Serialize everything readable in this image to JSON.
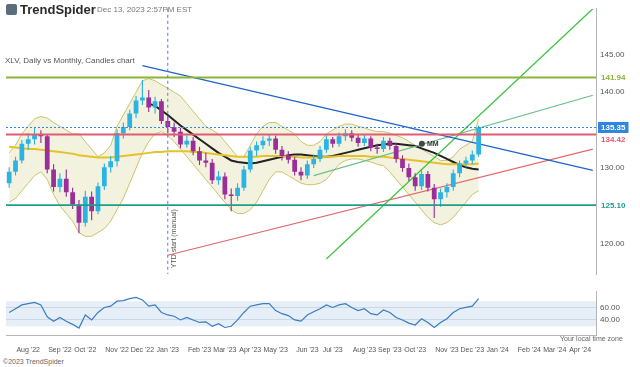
{
  "header": {
    "brand": "TrendSpider",
    "timestamp": "Dec 13, 2023 2:57PM EST"
  },
  "footer": {
    "copyright": "©2023 TrendSpider",
    "timezone_note": "Your local time zone"
  },
  "chart_data": [
    {
      "type": "candlestick",
      "title": "XLV, Daily vs Monthly, Candles chart",
      "categories": [
        null,
        null,
        null,
        "Aug '22",
        null,
        null,
        null,
        null,
        "Sep '22",
        null,
        null,
        null,
        "Oct '22",
        null,
        null,
        null,
        null,
        "Nov '22",
        null,
        null,
        null,
        "Dec '22",
        null,
        null,
        null,
        "Jan '23",
        null,
        null,
        null,
        null,
        "Feb '23",
        null,
        null,
        null,
        "Mar '23",
        null,
        null,
        null,
        "Apr '23",
        null,
        null,
        null,
        "May '23",
        null,
        null,
        null,
        null,
        "Jun '23",
        null,
        null,
        null,
        "Jul '23",
        null,
        null,
        null,
        null,
        "Aug '23",
        null,
        null,
        null,
        "Sep '23",
        null,
        null,
        null,
        "Oct '23",
        null,
        null,
        null,
        null,
        "Nov '23",
        null,
        null,
        null,
        "Dec '23",
        null,
        null,
        null,
        "Jan '24",
        null,
        null,
        null,
        null,
        "Feb '24",
        null,
        null,
        null,
        "Mar '24",
        null,
        null,
        null,
        "Apr '24",
        null,
        null
      ],
      "open": [
        128.0,
        129.5,
        131.0,
        133.2,
        133.8,
        134.5,
        134.2,
        129.8,
        127.5,
        128.6,
        126.8,
        125.2,
        122.8,
        126.2,
        124.3,
        127.6,
        130.1,
        130.9,
        134.6,
        135.4,
        137.2,
        138.9,
        139.3,
        138.0,
        138.8,
        136.2,
        135.4,
        134.8,
        133.1,
        133.6,
        132.2,
        131.0,
        130.7,
        128.4,
        128.9,
        126.5,
        126.3,
        127.4,
        129.8,
        132.3,
        133.0,
        133.6,
        133.9,
        132.4,
        131.6,
        131.1,
        129.5,
        129.0,
        130.5,
        131.2,
        132.4,
        133.8,
        133.2,
        134.2,
        134.6,
        134.0,
        133.3,
        133.9,
        132.7,
        132.5,
        133.6,
        132.9,
        131.2,
        130.0,
        128.8,
        127.6,
        129.2,
        127.4,
        125.9,
        126.8,
        127.5,
        129.3,
        130.6,
        131.0,
        131.8,
        null,
        null,
        null,
        null,
        null,
        null,
        null,
        null,
        null,
        null,
        null,
        null,
        null,
        null,
        null,
        null,
        null,
        null
      ],
      "high": [
        130.1,
        131.5,
        133.7,
        134.6,
        135.3,
        135.0,
        134.4,
        130.5,
        129.3,
        129.8,
        127.4,
        125.8,
        127.0,
        126.9,
        128.1,
        130.6,
        131.6,
        135.1,
        136.0,
        137.7,
        139.5,
        141.6,
        140.3,
        139.4,
        139.1,
        136.9,
        136.0,
        135.3,
        134.3,
        134.1,
        132.8,
        132.0,
        131.2,
        129.6,
        129.4,
        127.3,
        128.0,
        130.3,
        132.8,
        133.5,
        134.2,
        134.5,
        134.3,
        132.9,
        132.2,
        131.5,
        130.1,
        131.0,
        131.8,
        132.9,
        134.3,
        134.1,
        134.7,
        135.1,
        135.0,
        134.4,
        134.5,
        134.2,
        133.2,
        134.1,
        134.0,
        133.3,
        131.7,
        130.6,
        129.3,
        129.7,
        129.6,
        127.9,
        127.3,
        128.0,
        129.8,
        131.0,
        131.5,
        132.3,
        135.6,
        null,
        null,
        null,
        null,
        null,
        null,
        null,
        null,
        null,
        null,
        null,
        null,
        null,
        null,
        null,
        null,
        null,
        null
      ],
      "low": [
        127.4,
        129.0,
        130.6,
        132.4,
        133.1,
        133.3,
        129.3,
        126.9,
        126.8,
        126.2,
        124.6,
        121.4,
        122.3,
        123.1,
        123.9,
        127.1,
        129.4,
        130.2,
        133.9,
        135.0,
        136.6,
        138.3,
        137.4,
        137.2,
        135.8,
        134.6,
        134.1,
        132.6,
        132.7,
        131.7,
        130.4,
        130.1,
        127.9,
        127.8,
        125.9,
        124.3,
        125.7,
        127.0,
        129.4,
        131.6,
        132.5,
        132.9,
        131.9,
        131.0,
        130.6,
        129.0,
        128.4,
        128.6,
        130.0,
        130.8,
        132.0,
        132.7,
        132.8,
        133.6,
        133.5,
        132.8,
        132.9,
        132.2,
        131.9,
        132.1,
        132.4,
        130.7,
        129.5,
        128.3,
        127.0,
        127.1,
        126.9,
        123.4,
        124.9,
        126.1,
        127.0,
        128.8,
        130.1,
        130.5,
        131.5,
        null,
        null,
        null,
        null,
        null,
        null,
        null,
        null,
        null,
        null,
        null,
        null,
        null,
        null,
        null,
        null,
        null,
        null
      ],
      "close": [
        129.5,
        131.0,
        133.2,
        133.8,
        134.5,
        134.2,
        129.8,
        127.5,
        128.6,
        126.8,
        125.2,
        122.8,
        126.2,
        124.3,
        127.6,
        130.1,
        130.9,
        134.6,
        135.4,
        137.2,
        138.9,
        139.3,
        138.0,
        138.8,
        136.2,
        135.4,
        134.8,
        133.1,
        133.6,
        132.2,
        131.0,
        130.7,
        128.4,
        128.9,
        126.5,
        126.3,
        127.4,
        129.8,
        132.3,
        133.0,
        133.6,
        133.9,
        132.4,
        131.6,
        131.1,
        129.5,
        129.0,
        130.5,
        131.2,
        132.4,
        133.8,
        133.2,
        134.2,
        134.6,
        134.0,
        133.3,
        133.9,
        132.7,
        132.5,
        133.6,
        132.9,
        131.2,
        130.0,
        128.8,
        127.6,
        129.2,
        127.4,
        125.9,
        126.8,
        127.5,
        129.3,
        130.6,
        131.0,
        131.8,
        135.35,
        null,
        null,
        null,
        null,
        null,
        null,
        null,
        null,
        null,
        null,
        null,
        null,
        null,
        null,
        null,
        null,
        null,
        null
      ],
      "series": [
        {
          "type": "band",
          "color": "#c9c46a",
          "upper": [
            132,
            133,
            134.5,
            135.5,
            136.5,
            136.8,
            136.6,
            136,
            135.5,
            135,
            134.5,
            134.5,
            133.5,
            132.5,
            131.5,
            132,
            133,
            135.5,
            137,
            138.5,
            140,
            141.5,
            141.8,
            141.5,
            141,
            140.5,
            140,
            139.5,
            138.5,
            137.5,
            136.5,
            135.5,
            135,
            134.5,
            133.5,
            132.5,
            131.5,
            131.5,
            133,
            134.5,
            135.5,
            136,
            136,
            135.5,
            135,
            134.5,
            133.5,
            133,
            133,
            133.5,
            134.5,
            135,
            135.5,
            135.8,
            135.8,
            135.5,
            135.3,
            135,
            134.8,
            134.8,
            134.6,
            134.3,
            134,
            133.5,
            133,
            132.5,
            132,
            131.5,
            131,
            131,
            131.5,
            132.5,
            133,
            133.5,
            136.5,
            null,
            null,
            null,
            null,
            null,
            null,
            null,
            null,
            null,
            null,
            null,
            null,
            null,
            null,
            null,
            null,
            null,
            null
          ],
          "lower": [
            125.5,
            126,
            127,
            128,
            129,
            129.5,
            128.5,
            126.5,
            125,
            124,
            123,
            121.5,
            121,
            121,
            121.5,
            122,
            123,
            124.5,
            126,
            128,
            130,
            132,
            133.5,
            134.5,
            134.8,
            134.3,
            133.5,
            132.5,
            131.5,
            130.5,
            129.5,
            128.5,
            127.5,
            126.5,
            125.5,
            124.5,
            124,
            124,
            124.5,
            125.5,
            127,
            128.5,
            129.5,
            129.5,
            129,
            128.5,
            128,
            127.8,
            127.8,
            128,
            128.5,
            129.5,
            130.5,
            131,
            131.2,
            131.2,
            131,
            130.8,
            130.5,
            130.3,
            129.5,
            128.5,
            127.5,
            126.5,
            125.5,
            124.5,
            123.5,
            122.8,
            122.5,
            122.8,
            123.5,
            124.5,
            125.5,
            126.5,
            127,
            null,
            null,
            null,
            null,
            null,
            null,
            null,
            null,
            null,
            null,
            null,
            null,
            null,
            null,
            null,
            null,
            null,
            null
          ]
        },
        {
          "type": "line",
          "color": "#e6c229",
          "values": [
            132.8,
            132.7,
            132.6,
            132.5,
            132.5,
            132.4,
            132.3,
            132.2,
            132.1,
            132.0,
            131.9,
            131.7,
            131.6,
            131.5,
            131.4,
            131.4,
            131.4,
            131.5,
            131.6,
            131.7,
            131.8,
            131.9,
            132.0,
            132.1,
            132.1,
            132.2,
            132.2,
            132.2,
            132.2,
            132.1,
            132.1,
            132.0,
            131.9,
            131.8,
            131.7,
            131.6,
            131.5,
            131.5,
            131.5,
            131.5,
            131.6,
            131.6,
            131.6,
            131.6,
            131.5,
            131.5,
            131.4,
            131.4,
            131.4,
            131.4,
            131.5,
            131.5,
            131.6,
            131.6,
            131.6,
            131.6,
            131.6,
            131.5,
            131.5,
            131.5,
            131.4,
            131.3,
            131.2,
            131.1,
            131.0,
            130.9,
            130.8,
            130.7,
            130.6,
            130.5,
            130.5,
            130.5,
            130.5,
            130.5,
            130.6,
            null,
            null,
            null,
            null,
            null,
            null,
            null,
            null,
            null,
            null,
            null,
            null,
            null,
            null,
            null,
            null,
            null,
            null
          ]
        },
        {
          "type": "line",
          "color": "#222222",
          "values": [
            null,
            null,
            null,
            null,
            null,
            null,
            null,
            null,
            null,
            null,
            null,
            null,
            null,
            null,
            null,
            null,
            null,
            null,
            null,
            null,
            null,
            null,
            138.5,
            138.2,
            137.6,
            137.0,
            136.3,
            135.6,
            135.0,
            134.4,
            133.8,
            133.2,
            132.6,
            132.0,
            131.5,
            131.0,
            130.8,
            130.7,
            130.6,
            130.7,
            130.9,
            131.1,
            131.3,
            131.5,
            131.7,
            131.8,
            131.8,
            131.7,
            131.6,
            131.5,
            131.5,
            131.6,
            131.8,
            132.0,
            132.2,
            132.4,
            132.6,
            132.8,
            133.0,
            133.1,
            133.2,
            133.2,
            133.1,
            133.0,
            132.9,
            132.6,
            132.3,
            132.0,
            131.6,
            131.2,
            130.8,
            130.4,
            130.1,
            129.9,
            129.8,
            null,
            null,
            null,
            null,
            null,
            null,
            null,
            null,
            null,
            null,
            null,
            null,
            null,
            null,
            null,
            null,
            null,
            null
          ]
        }
      ],
      "lines": [
        {
          "color": "#1e63c8",
          "x": [
            21,
            92
          ],
          "y": [
            143.5,
            129.7
          ]
        },
        {
          "color": "#3cc43c",
          "x": [
            50,
            92
          ],
          "y": [
            118.0,
            151.0
          ]
        },
        {
          "color": "#6cbf8c",
          "x": [
            48,
            92
          ],
          "y": [
            129.0,
            139.6
          ]
        },
        {
          "color": "#e06a6a",
          "x": [
            25,
            92
          ],
          "y": [
            118.5,
            132.5
          ]
        }
      ],
      "levels": [
        {
          "value": 141.94,
          "label": "141.94",
          "color": "#8bb43a",
          "line_style": "solid"
        },
        {
          "value": 135.35,
          "label": "135.35",
          "color": "#2e86de",
          "line_style": "dotted",
          "marker": "tag"
        },
        {
          "value": 134.42,
          "label": "134.42",
          "color": "#e05c72",
          "line_style": "solid"
        },
        {
          "value": 125.1,
          "label": "125.10",
          "color": "#1f9e8a",
          "line_style": "solid"
        }
      ],
      "annotations": [
        {
          "text": "YTD start (manual)",
          "x": 25
        },
        {
          "text": "MM",
          "x": 66,
          "y": 133.2
        }
      ],
      "ylim": [
        116,
        151
      ],
      "yticks": [
        {
          "value": 120,
          "label": "120.00"
        },
        {
          "value": 130,
          "label": "130.00"
        },
        {
          "value": 140,
          "label": "140.00"
        },
        {
          "value": 145,
          "label": "145.00"
        }
      ],
      "grid": false,
      "tick_labels": "y"
    },
    {
      "type": "line",
      "categories": [
        null,
        null,
        null,
        "Aug '22",
        null,
        null,
        null,
        null,
        "Sep '22",
        null,
        null,
        null,
        "Oct '22",
        null,
        null,
        null,
        null,
        "Nov '22",
        null,
        null,
        null,
        "Dec '22",
        null,
        null,
        null,
        "Jan '23",
        null,
        null,
        null,
        null,
        "Feb '23",
        null,
        null,
        null,
        "Mar '23",
        null,
        null,
        null,
        "Apr '23",
        null,
        null,
        null,
        "May '23",
        null,
        null,
        null,
        null,
        "Jun '23",
        null,
        null,
        null,
        "Jul '23",
        null,
        null,
        null,
        null,
        "Aug '23",
        null,
        null,
        null,
        "Sep '23",
        null,
        null,
        null,
        "Oct '23",
        null,
        null,
        null,
        null,
        "Nov '23",
        null,
        null,
        null,
        "Dec '23",
        null,
        null,
        null,
        "Jan '24",
        null,
        null,
        null,
        null,
        "Feb '24",
        null,
        null,
        null,
        "Mar '24",
        null,
        null,
        null,
        "Apr '24",
        null,
        null
      ],
      "series": [
        {
          "color": "#3b7dbf",
          "values": [
            52,
            58,
            64,
            66,
            68,
            64,
            45,
            38,
            44,
            38,
            33,
            27,
            48,
            40,
            52,
            60,
            62,
            70,
            71,
            74,
            76,
            72,
            62,
            64,
            52,
            48,
            46,
            40,
            44,
            40,
            36,
            37,
            30,
            34,
            28,
            30,
            40,
            52,
            62,
            64,
            66,
            66,
            55,
            50,
            47,
            40,
            38,
            48,
            53,
            58,
            64,
            60,
            64,
            66,
            60,
            55,
            58,
            50,
            48,
            56,
            52,
            44,
            40,
            35,
            32,
            42,
            36,
            28,
            36,
            42,
            52,
            58,
            60,
            62,
            74,
            null,
            null,
            null,
            null,
            null,
            null,
            null,
            null,
            null,
            null,
            null,
            null,
            null,
            null,
            null,
            null,
            null,
            null
          ]
        }
      ],
      "band": [
        30,
        70
      ],
      "ylim": [
        15,
        85
      ],
      "yticks": [
        {
          "value": 40,
          "label": "40.00"
        },
        {
          "value": 60,
          "label": "60.00"
        }
      ],
      "grid": true,
      "tick_labels": true
    }
  ]
}
